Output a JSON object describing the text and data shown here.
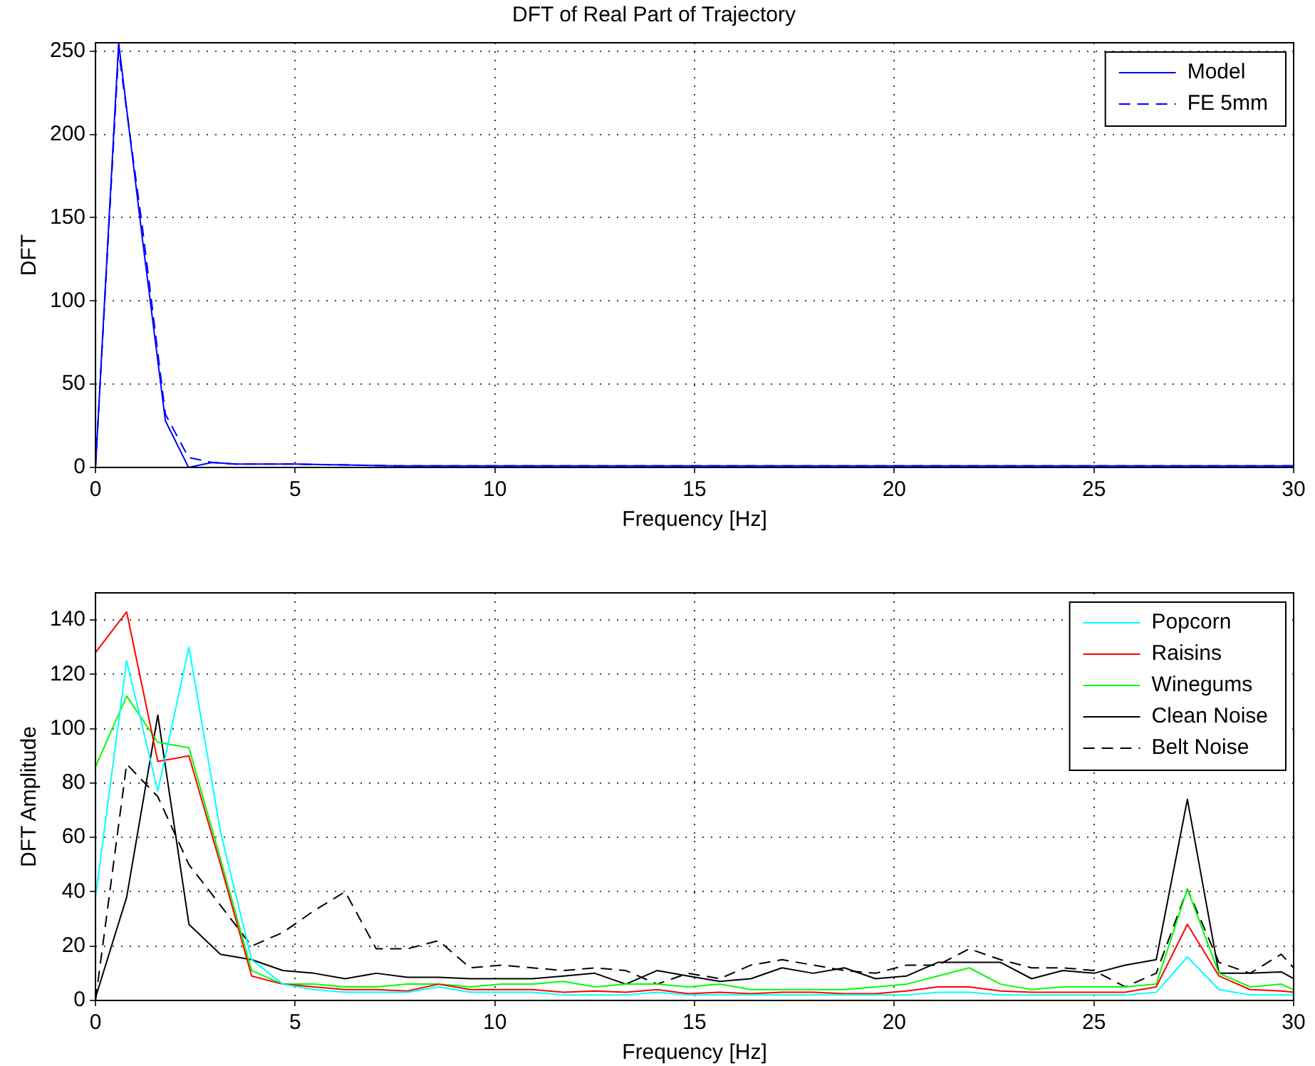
{
  "chart_data": [
    {
      "type": "line",
      "title": "DFT of Real Part of Trajectory",
      "xlabel": "Frequency [Hz]",
      "ylabel": "DFT",
      "x": [
        0,
        0.58,
        1.17,
        1.75,
        2.33,
        2.92,
        3.5,
        5,
        7.5,
        10,
        15,
        20,
        25,
        30
      ],
      "series": [
        {
          "name": "Model",
          "color": "#0000ff",
          "line_style": "solid",
          "values": [
            0,
            255,
            138,
            28,
            0,
            3,
            2,
            2,
            1,
            1,
            1,
            1,
            1,
            1
          ]
        },
        {
          "name": "FE 5mm",
          "color": "#0000ff",
          "line_style": "dashed",
          "values": [
            0,
            250,
            145,
            32,
            6,
            3,
            2,
            2,
            1,
            1,
            1,
            1,
            1,
            1
          ]
        }
      ],
      "xlim": [
        0,
        30
      ],
      "xticks": [
        0,
        5,
        10,
        15,
        20,
        25,
        30
      ],
      "ylim": [
        0,
        255
      ],
      "yticks": [
        0,
        50,
        100,
        150,
        200,
        250
      ],
      "grid": true,
      "legend": "top right",
      "marker": "none"
    },
    {
      "type": "line",
      "xlabel": "Frequency [Hz]",
      "ylabel": "DFT Amplitude",
      "x": [
        0,
        0.78,
        1.56,
        2.34,
        3.13,
        3.91,
        4.69,
        5.47,
        6.25,
        7.03,
        7.81,
        8.59,
        9.38,
        10.16,
        10.94,
        11.72,
        12.5,
        13.28,
        14.06,
        14.84,
        15.63,
        16.41,
        17.19,
        17.97,
        18.75,
        19.53,
        20.31,
        21.09,
        21.88,
        22.66,
        23.44,
        24.22,
        25,
        25.78,
        26.56,
        27.34,
        28.13,
        28.91,
        29.69,
        30
      ],
      "series": [
        {
          "name": "Popcorn",
          "color": "#00ffff",
          "line_style": "solid",
          "values": [
            38,
            125,
            77,
            130,
            62,
            15,
            6,
            4,
            3,
            3,
            3,
            5,
            3,
            3,
            3,
            2,
            2,
            2,
            3,
            2,
            2,
            2,
            2,
            2,
            2,
            2,
            2,
            3,
            3,
            2,
            2,
            2,
            2,
            2,
            3,
            16,
            4,
            2,
            2,
            2
          ]
        },
        {
          "name": "Raisins",
          "color": "#ff0000",
          "line_style": "solid",
          "values": [
            128,
            143,
            88,
            90,
            50,
            9,
            6,
            5,
            4,
            4,
            3.5,
            6,
            4,
            4,
            4,
            3,
            3.5,
            3,
            4,
            2.5,
            3,
            2.5,
            3,
            3,
            2.5,
            2.5,
            3.5,
            5,
            5,
            3.5,
            3,
            3,
            3,
            3,
            5,
            28,
            9,
            4,
            3.5,
            3
          ]
        },
        {
          "name": "Winegums",
          "color": "#00ff00",
          "line_style": "solid",
          "values": [
            86,
            112,
            95,
            93,
            52,
            11,
            6,
            6,
            5,
            5,
            6,
            6,
            5,
            6,
            6,
            7,
            5,
            6,
            6,
            5,
            6,
            4,
            4,
            4,
            4,
            5,
            6,
            9,
            12,
            6,
            4,
            5,
            5,
            5,
            6,
            41,
            10,
            5,
            6,
            4
          ]
        },
        {
          "name": "Clean Noise",
          "color": "#000000",
          "line_style": "solid",
          "values": [
            1,
            38,
            105,
            28,
            17,
            15,
            11,
            10,
            8,
            10,
            8.5,
            8.5,
            8,
            8,
            8,
            9,
            10,
            6,
            11,
            9,
            7,
            8,
            12,
            10,
            12,
            8,
            9,
            14,
            14,
            14,
            8,
            11,
            10,
            13,
            15,
            74,
            10,
            10,
            10.5,
            8
          ]
        },
        {
          "name": "Belt Noise",
          "color": "#000000",
          "line_style": "dashed",
          "values": [
            0,
            87,
            75,
            50,
            35,
            20,
            25,
            33,
            40,
            19,
            19,
            22,
            12,
            13,
            12,
            11,
            12,
            11,
            6,
            10,
            8,
            13,
            15,
            13,
            11,
            10,
            13,
            13,
            19,
            15,
            12,
            12,
            11,
            5,
            10,
            41,
            14,
            10,
            17,
            12
          ]
        }
      ],
      "xlim": [
        0,
        30
      ],
      "xticks": [
        0,
        5,
        10,
        15,
        20,
        25,
        30
      ],
      "ylim": [
        0,
        150
      ],
      "yticks": [
        0,
        20,
        40,
        60,
        80,
        100,
        120,
        140
      ],
      "grid": true,
      "legend": "top right",
      "marker": "none"
    }
  ]
}
